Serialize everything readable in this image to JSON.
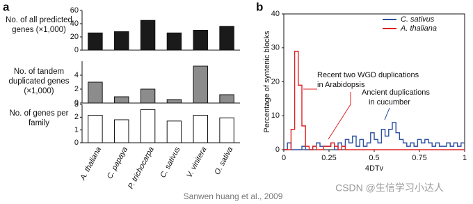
{
  "chart_data": [
    {
      "type": "bar",
      "panel_label": "a",
      "categories": [
        "A. thaliana",
        "C. papaya",
        "P. trichocarpa",
        "C. sativus",
        "V. vinitera",
        "O. sativa"
      ],
      "series": [
        {
          "name": "No. of all predicted genes (×1,000)",
          "color": "#1a1a1a",
          "values": [
            26,
            28,
            45,
            26,
            30,
            36
          ],
          "ylim": [
            0,
            60
          ],
          "yticks": [
            0,
            20,
            40,
            60
          ]
        },
        {
          "name": "No. of tandem duplicated genes (×1,000)",
          "color": "#8c8c8c",
          "values": [
            3.0,
            0.9,
            2.0,
            0.5,
            5.3,
            1.2
          ],
          "ylim": [
            0,
            6
          ],
          "yticks": [
            0,
            2,
            4
          ]
        },
        {
          "name": "No. of genes per family",
          "color": "#ffffff",
          "values": [
            2.15,
            1.8,
            2.6,
            1.7,
            2.15,
            1.95
          ],
          "ylim": [
            0,
            3
          ],
          "yticks": [
            0,
            1,
            2,
            3
          ]
        }
      ]
    },
    {
      "type": "step",
      "panel_label": "b",
      "x_label": "4DTv",
      "y_label": "Percentage of syntenic blocks",
      "xlim": [
        0,
        1
      ],
      "xticks": [
        0,
        0.25,
        0.5,
        0.75,
        1
      ],
      "ylim": [
        0,
        40
      ],
      "yticks": [
        0,
        10,
        20,
        30,
        40
      ],
      "legend": "upper right",
      "x": [
        0,
        0.02,
        0.04,
        0.06,
        0.08,
        0.1,
        0.12,
        0.14,
        0.16,
        0.18,
        0.2,
        0.22,
        0.24,
        0.26,
        0.28,
        0.3,
        0.32,
        0.34,
        0.36,
        0.38,
        0.4,
        0.42,
        0.44,
        0.46,
        0.48,
        0.5,
        0.52,
        0.54,
        0.56,
        0.58,
        0.6,
        0.62,
        0.64,
        0.66,
        0.68,
        0.7,
        0.72,
        0.74,
        0.76,
        0.78,
        0.8,
        0.82,
        0.84,
        0.86,
        0.88,
        0.9,
        0.92,
        0.94,
        0.96,
        0.98
      ],
      "series": [
        {
          "name": "C. sativus",
          "color": "#2b4fa0",
          "values": [
            0,
            2,
            0,
            0,
            0,
            1,
            0,
            0,
            1,
            2,
            1,
            1,
            1,
            2,
            0,
            2,
            1,
            3,
            2,
            4,
            1,
            3,
            1,
            2,
            5,
            3,
            2,
            6,
            4,
            6,
            8,
            5,
            3,
            2,
            1,
            2,
            1,
            3,
            2,
            3,
            2,
            1,
            2,
            1,
            1,
            2,
            1,
            2,
            1,
            2
          ]
        },
        {
          "name": "A. thaliana",
          "color": "#e02020",
          "values": [
            0,
            0,
            6,
            29,
            19,
            7,
            1,
            0,
            1,
            0,
            0,
            1,
            1,
            2,
            1,
            0,
            1,
            0,
            0,
            0,
            0,
            0,
            0,
            0,
            0,
            0,
            0,
            0,
            0,
            0,
            0,
            0,
            0,
            0,
            0,
            0,
            0,
            0,
            0,
            0,
            0,
            0,
            0,
            0,
            0,
            0,
            0,
            0,
            0,
            0
          ]
        }
      ],
      "annotations": [
        {
          "lines": [
            "Recent two WGD duplications",
            "in Arabidopsis"
          ]
        },
        {
          "lines": [
            "Ancient duplications",
            "in cucumber"
          ]
        }
      ]
    }
  ],
  "caption": "Sanwen huang et al., 2009",
  "watermark": "CSDN @生信学习小达人"
}
